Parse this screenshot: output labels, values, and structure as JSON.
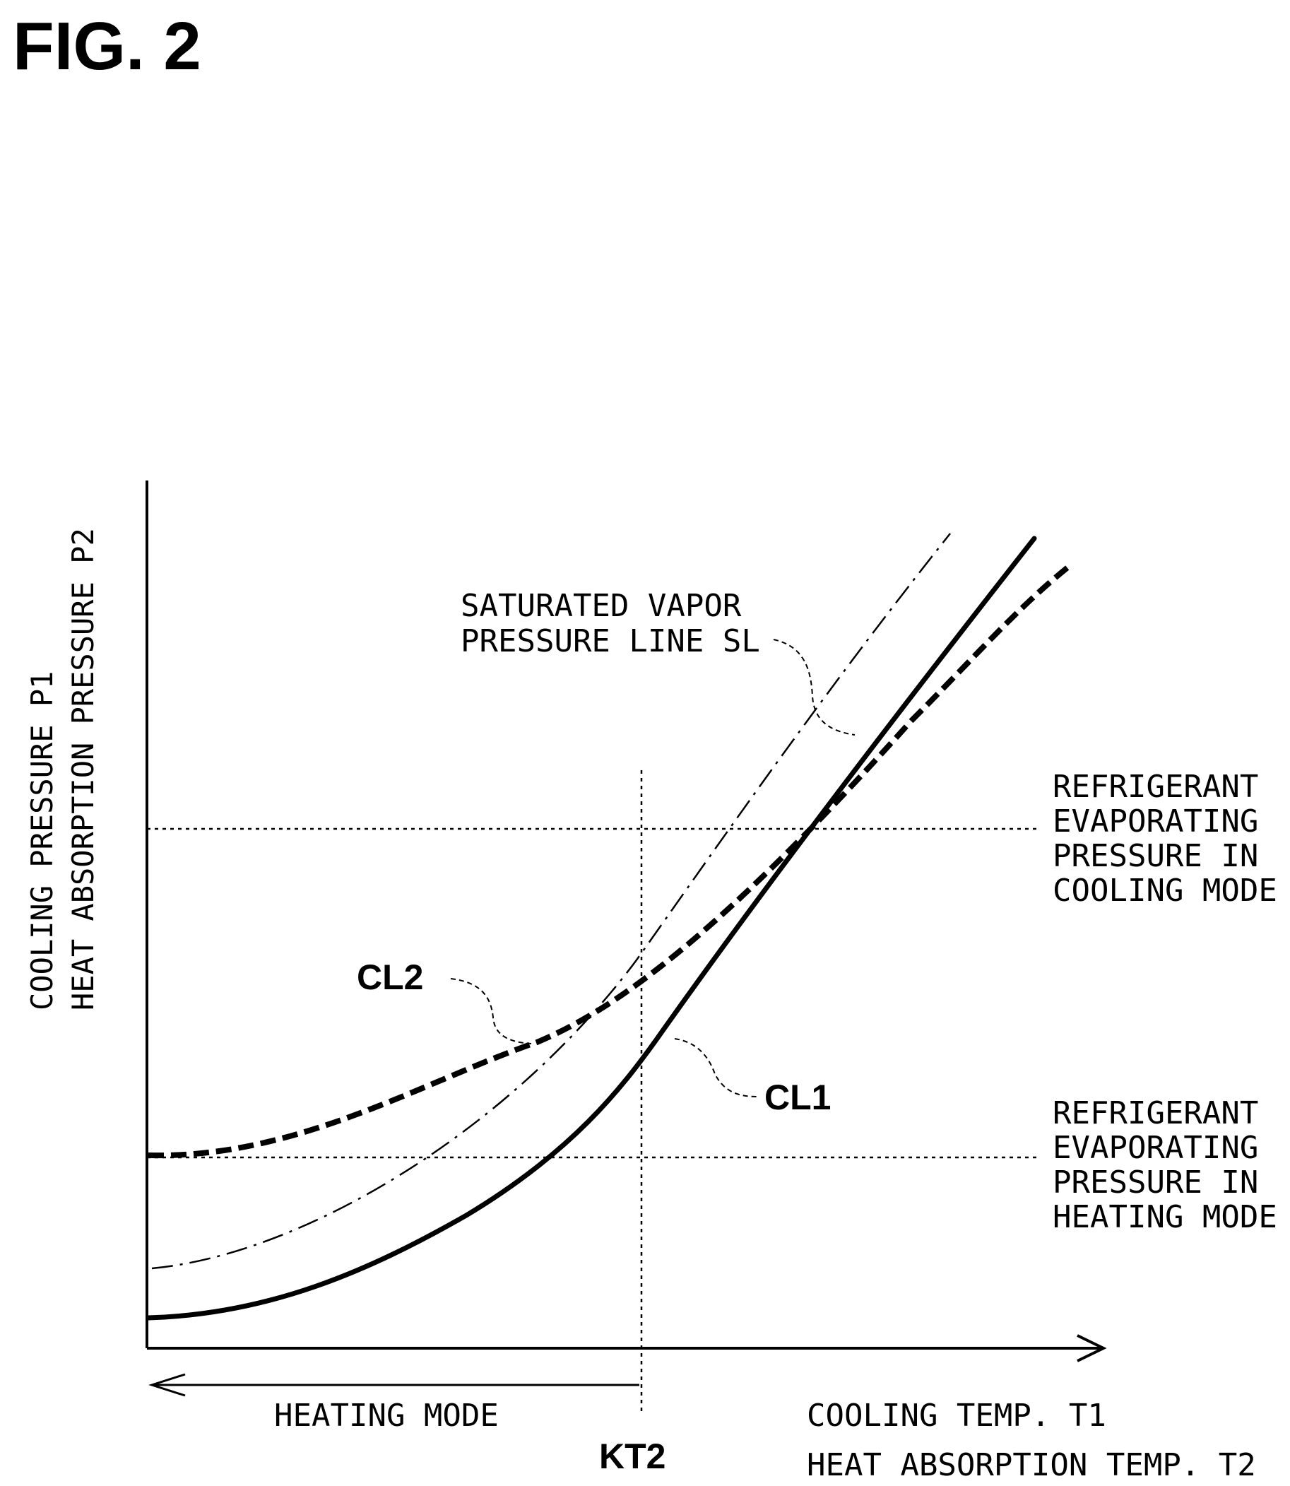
{
  "figure": {
    "title": "FIG. 2",
    "y_axis_label_lines": [
      "COOLING PRESSURE P1",
      "HEAT ABSORPTION PRESSURE P2"
    ],
    "x_axis_label_lines": [
      "COOLING TEMP. T1",
      "HEAT ABSORPTION TEMP. T2"
    ],
    "heating_mode_label": "HEATING MODE",
    "kt2_label": "KT2",
    "saturated_line_label_lines": [
      "SATURATED VAPOR",
      "PRESSURE LINE SL"
    ],
    "cl1_label": "CL1",
    "cl2_label": "CL2",
    "cooling_ref_label_lines": [
      "REFRIGERANT",
      "EVAPORATING",
      "PRESSURE IN",
      "COOLING MODE"
    ],
    "heating_ref_label_lines": [
      "REFRIGERANT",
      "EVAPORATING",
      "PRESSURE IN",
      "HEATING MODE"
    ]
  },
  "colors": {
    "ink": "#000000",
    "background": "#ffffff"
  }
}
